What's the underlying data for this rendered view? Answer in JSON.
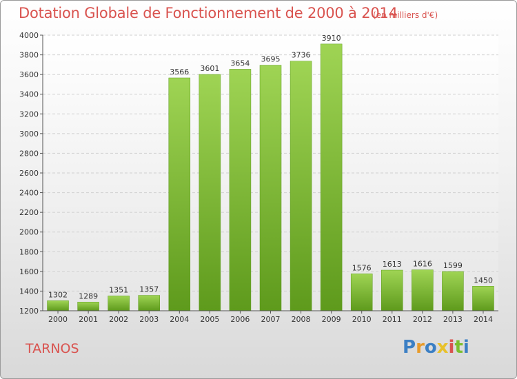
{
  "chart_data": {
    "type": "bar",
    "title": "Dotation Globale de Fonctionnement de 2000 à 2014",
    "subtitle": "(en milliers d'€)",
    "categories": [
      "2000",
      "2001",
      "2002",
      "2003",
      "2004",
      "2005",
      "2006",
      "2007",
      "2008",
      "2009",
      "2010",
      "2011",
      "2012",
      "2013",
      "2014"
    ],
    "values": [
      1302,
      1289,
      1351,
      1357,
      3566,
      3601,
      3654,
      3695,
      3736,
      3910,
      1576,
      1613,
      1616,
      1599,
      1450
    ],
    "ylim": [
      1200,
      4000
    ],
    "yticks": [
      1200,
      1400,
      1600,
      1800,
      2000,
      2200,
      2400,
      2600,
      2800,
      3000,
      3200,
      3400,
      3600,
      3800,
      4000
    ],
    "grid": true,
    "bar_color": "#7bbf2e"
  },
  "town": "TARNOS",
  "logo": {
    "letters": [
      "P",
      "r",
      "o",
      "x",
      "i",
      "t",
      "i"
    ],
    "colors": [
      "#3b7fc4",
      "#e89b2a",
      "#3b7fc4",
      "#e8c12a",
      "#d9534f",
      "#7bbf2e",
      "#3b7fc4"
    ]
  }
}
